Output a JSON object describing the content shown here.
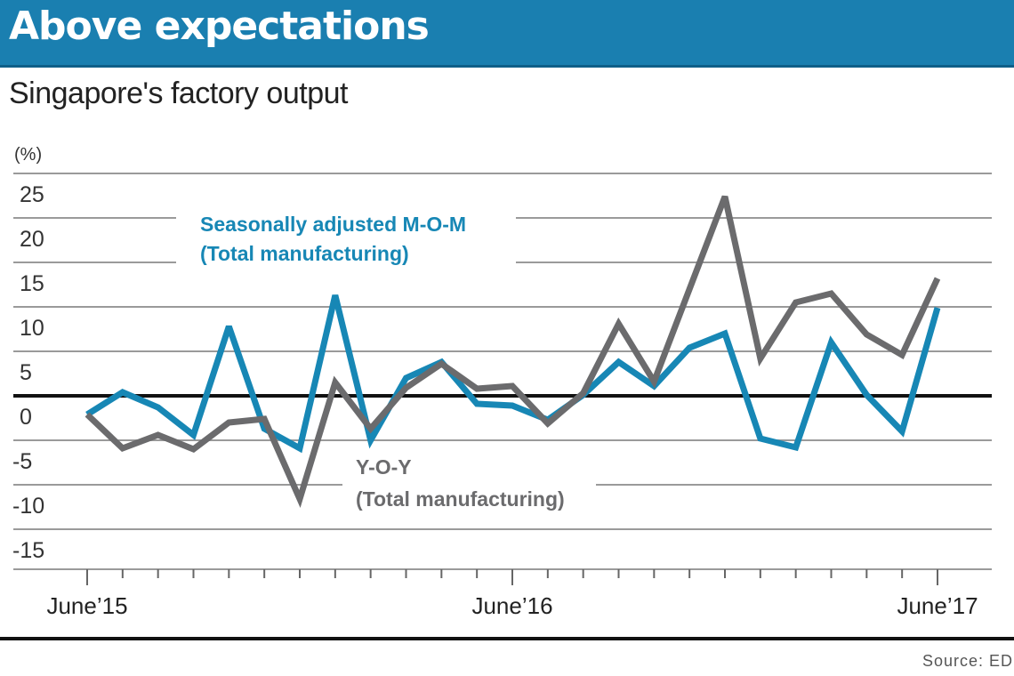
{
  "header": {
    "title": "Above expectations",
    "subtitle": "Singapore's factory output"
  },
  "source": "Source: EDB",
  "colors": {
    "banner": "#1a7fb0",
    "mom": "#1787b5",
    "yoy": "#6b6b6d",
    "zero_line": "#111111",
    "grid": "#9a9a9a"
  },
  "chart_data": {
    "type": "line",
    "title": "Singapore's factory output",
    "ylabel": "(%)",
    "xlabel": "",
    "ylim": [
      -20,
      25
    ],
    "yticks": [
      25,
      20,
      15,
      10,
      5,
      0,
      -5,
      -10,
      -15
    ],
    "x": [
      "Jun 2015",
      "Jul 2015",
      "Aug 2015",
      "Sep 2015",
      "Oct 2015",
      "Nov 2015",
      "Dec 2015",
      "Jan 2016",
      "Feb 2016",
      "Mar 2016",
      "Apr 2016",
      "May 2016",
      "Jun 2016",
      "Jul 2016",
      "Aug 2016",
      "Sep 2016",
      "Oct 2016",
      "Nov 2016",
      "Dec 2016",
      "Jan 2017",
      "Feb 2017",
      "Mar 2017",
      "Apr 2017",
      "May 2017",
      "Jun 2017"
    ],
    "xtick_labels": [
      {
        "index": 0,
        "label": "June’15"
      },
      {
        "index": 12,
        "label": "June’16"
      },
      {
        "index": 24,
        "label": "June’17"
      }
    ],
    "grid": true,
    "series": [
      {
        "name": "Seasonally adjusted M-O-M",
        "name_line2": "(Total manufacturing)",
        "color": "#1787b5",
        "values": [
          -2.1,
          0.4,
          -1.3,
          -4.4,
          7.8,
          -3.7,
          -5.9,
          11.3,
          -5.0,
          2.0,
          3.8,
          -0.9,
          -1.1,
          -2.7,
          0.1,
          3.8,
          1.1,
          5.4,
          7.0,
          -4.8,
          -5.8,
          6.0,
          0.1,
          -4.0,
          9.9
        ]
      },
      {
        "name": "Y-O-Y",
        "name_line2": "(Total manufacturing)",
        "color": "#6b6b6d",
        "values": [
          -2.1,
          -5.9,
          -4.4,
          -6.0,
          -3.0,
          -2.6,
          -11.6,
          1.5,
          -3.7,
          0.9,
          3.6,
          0.8,
          1.1,
          -3.1,
          0.3,
          8.1,
          1.6,
          12.0,
          22.4,
          4.2,
          10.5,
          11.5,
          6.9,
          4.6,
          13.2
        ]
      }
    ]
  }
}
